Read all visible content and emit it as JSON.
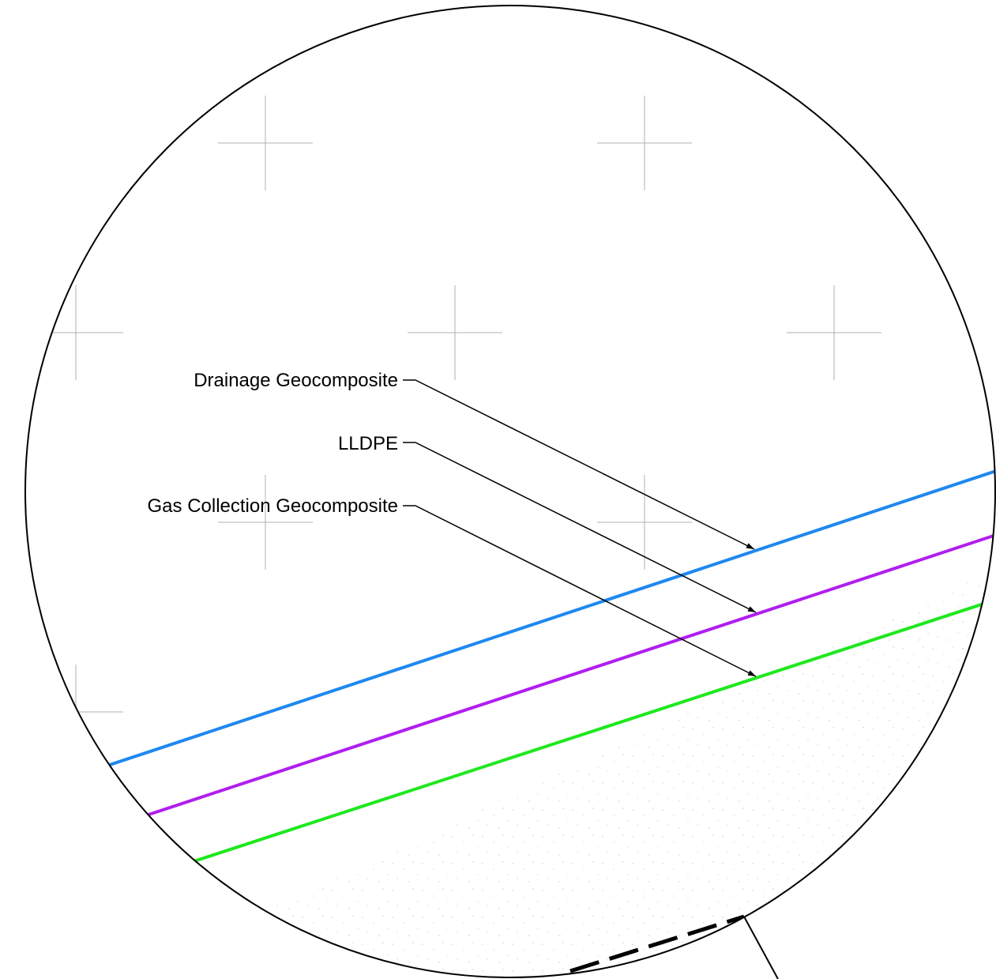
{
  "labels": {
    "drainage": "Drainage Geocomposite",
    "lldpe": "LLDPE",
    "gas_collection": "Gas Collection Geocomposite"
  },
  "colors": {
    "drainage_layer": "#1e88f0",
    "lldpe_layer": "#b01ef0",
    "gas_collection_layer": "#1ee81e",
    "outline": "#000000",
    "crosshair": "#b0b0b0",
    "soil_stipple": "#c8c8c8"
  }
}
